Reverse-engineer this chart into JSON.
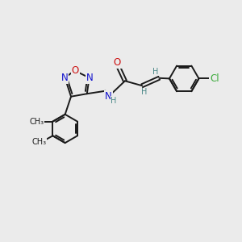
{
  "bg_color": "#ebebeb",
  "bond_color": "#1a1a1a",
  "bond_width": 1.4,
  "atom_colors": {
    "C": "#1a1a1a",
    "N": "#1010cc",
    "O": "#cc1010",
    "H": "#4a8888",
    "Cl": "#3aaa3a"
  },
  "font_size_atom": 8.5,
  "font_size_small": 7.0,
  "font_size_label": 7.5
}
